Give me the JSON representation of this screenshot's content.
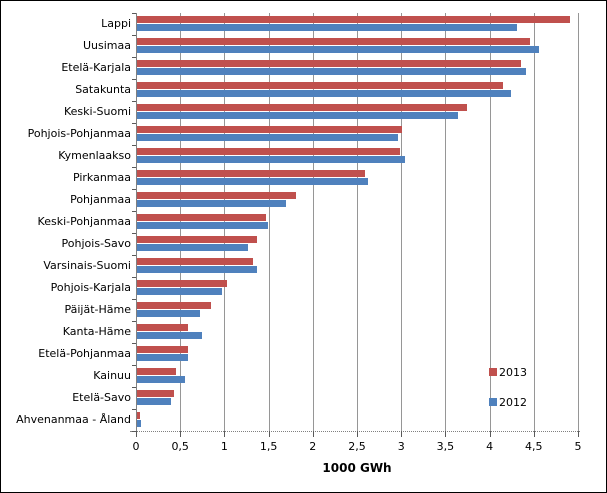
{
  "chart_data": {
    "type": "bar",
    "orientation": "horizontal",
    "xlabel": "1000 GWh",
    "xlim": [
      0,
      5
    ],
    "grid": "vertical",
    "xticks": {
      "values": [
        0,
        0.5,
        1,
        1.5,
        2,
        2.5,
        3,
        3.5,
        4,
        4.5,
        5
      ],
      "labels": [
        "0",
        "0,5",
        "1",
        "1,5",
        "2",
        "2,5",
        "3",
        "3,5",
        "4",
        "4,5",
        "5"
      ]
    },
    "legend": {
      "position": "inside-right",
      "order": [
        "2013",
        "2012"
      ]
    },
    "categories": [
      "Lappi",
      "Uusimaa",
      "Etelä-Karjala",
      "Satakunta",
      "Keski-Suomi",
      "Pohjois-Pohjanmaa",
      "Kymenlaakso",
      "Pirkanmaa",
      "Pohjanmaa",
      "Keski-Pohjanmaa",
      "Pohjois-Savo",
      "Varsinais-Suomi",
      "Pohjois-Karjala",
      "Päijät-Häme",
      "Kanta-Häme",
      "Etelä-Pohjanmaa",
      "Kainuu",
      "Etelä-Savo",
      "Ahvenanmaa - Åland"
    ],
    "series": [
      {
        "name": "2013",
        "color": "#C0504D",
        "values": [
          4.9,
          4.45,
          4.34,
          4.14,
          3.73,
          3.0,
          2.97,
          2.58,
          1.8,
          1.46,
          1.36,
          1.31,
          1.02,
          0.84,
          0.58,
          0.58,
          0.44,
          0.42,
          0.03
        ]
      },
      {
        "name": "2012",
        "color": "#4F81BD",
        "values": [
          4.3,
          4.55,
          4.4,
          4.23,
          3.63,
          2.95,
          3.03,
          2.61,
          1.68,
          1.48,
          1.25,
          1.36,
          0.96,
          0.71,
          0.74,
          0.58,
          0.54,
          0.38,
          0.04
        ]
      }
    ]
  },
  "colors": {
    "background": "#FFFFFF",
    "frame_border": "#000000",
    "gridline": "#969696",
    "axis": "#808080",
    "tick": "#595959",
    "text": "#000000"
  }
}
